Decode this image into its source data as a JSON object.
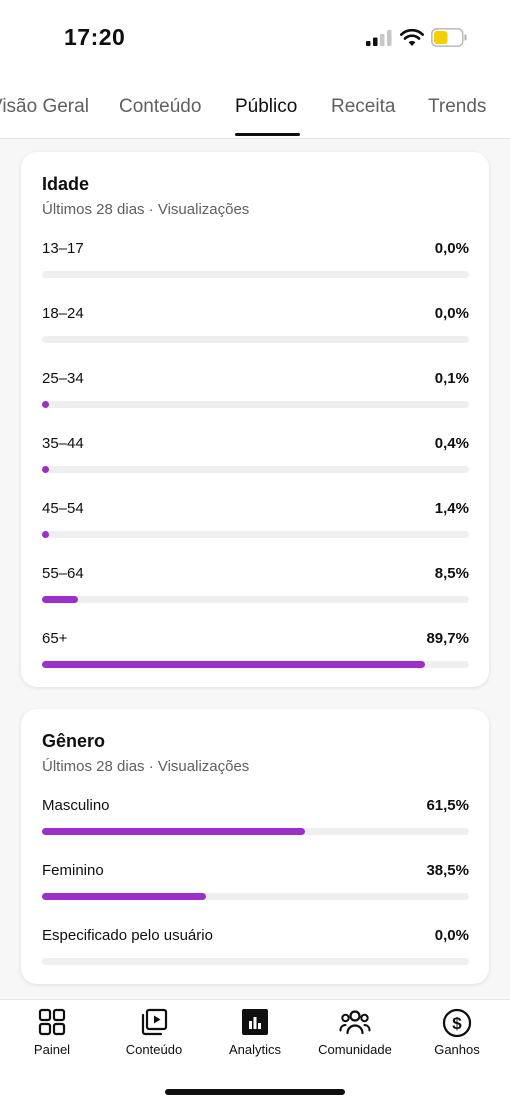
{
  "status_bar": {
    "time": "17:20"
  },
  "tabs": [
    {
      "label": "Visão Geral",
      "active": false
    },
    {
      "label": "Conteúdo",
      "active": false
    },
    {
      "label": "Público",
      "active": true
    },
    {
      "label": "Receita",
      "active": false
    },
    {
      "label": "Trends",
      "active": false
    }
  ],
  "age_card": {
    "title": "Idade",
    "subtitle": "Últimos 28 dias · Visualizações",
    "rows": [
      {
        "label": "13–17",
        "value": "0,0%",
        "percent": 0.0
      },
      {
        "label": "18–24",
        "value": "0,0%",
        "percent": 0.0
      },
      {
        "label": "25–34",
        "value": "0,1%",
        "percent": 0.1
      },
      {
        "label": "35–44",
        "value": "0,4%",
        "percent": 0.4
      },
      {
        "label": "45–54",
        "value": "1,4%",
        "percent": 1.4
      },
      {
        "label": "55–64",
        "value": "8,5%",
        "percent": 8.5
      },
      {
        "label": "65+",
        "value": "89,7%",
        "percent": 89.7
      }
    ]
  },
  "gender_card": {
    "title": "Gênero",
    "subtitle": "Últimos 28 dias · Visualizações",
    "rows": [
      {
        "label": "Masculino",
        "value": "61,5%",
        "percent": 61.5
      },
      {
        "label": "Feminino",
        "value": "38,5%",
        "percent": 38.5
      },
      {
        "label": "Especificado pelo usuário",
        "value": "0,0%",
        "percent": 0.0
      }
    ]
  },
  "bottom_nav": [
    {
      "label": "Painel",
      "icon": "dashboard-icon"
    },
    {
      "label": "Conteúdo",
      "icon": "content-icon"
    },
    {
      "label": "Analytics",
      "icon": "analytics-icon",
      "active": true
    },
    {
      "label": "Comunidade",
      "icon": "community-icon"
    },
    {
      "label": "Ganhos",
      "icon": "earnings-icon"
    }
  ],
  "colors": {
    "accent": "#9b2fc9",
    "track": "#efefef",
    "battery": "#f5d000"
  }
}
